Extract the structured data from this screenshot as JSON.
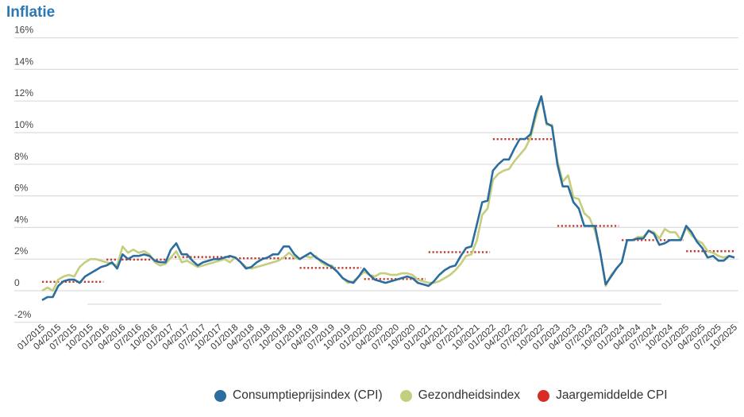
{
  "chart_data": {
    "type": "line",
    "title": "Inflatie",
    "xlabel": "",
    "ylabel": "",
    "ylim": [
      -2,
      16
    ],
    "yticks": [
      -2,
      0,
      2,
      4,
      6,
      8,
      10,
      12,
      14,
      16
    ],
    "ytick_labels": [
      "-2%",
      "0",
      "2%",
      "4%",
      "6%",
      "8%",
      "10%",
      "12%",
      "14%",
      "16%"
    ],
    "grid": true,
    "legend_position": "bottom",
    "x_start": "01/2015",
    "x_end": "10/2025",
    "xtick_labels": [
      "01/2015",
      "04/2015",
      "07/2015",
      "10/2015",
      "01/2016",
      "04/2016",
      "07/2016",
      "10/2016",
      "01/2017",
      "04/2017",
      "07/2017",
      "10/2017",
      "01/2018",
      "04/2018",
      "07/2018",
      "10/2018",
      "01/2019",
      "04/2019",
      "07/2019",
      "10/2019",
      "01/2020",
      "04/2020",
      "07/2020",
      "10/2020",
      "01/2021",
      "04/2021",
      "07/2021",
      "10/2021",
      "01/2022",
      "04/2022",
      "07/2022",
      "10/2022",
      "01/2023",
      "04/2023",
      "07/2023",
      "10/2023",
      "01/2024",
      "04/2024",
      "07/2024",
      "10/2024",
      "01/2025",
      "04/2025",
      "07/2025",
      "10/2025"
    ],
    "series": [
      {
        "name": "Consumptieprijsindex (CPI)",
        "color": "#2b6d9e",
        "values": [
          -0.6,
          -0.4,
          -0.4,
          0.3,
          0.6,
          0.7,
          0.7,
          0.5,
          0.9,
          1.1,
          1.3,
          1.5,
          1.6,
          1.8,
          1.4,
          2.3,
          2.0,
          2.2,
          2.2,
          2.3,
          2.2,
          1.9,
          1.8,
          1.8,
          2.6,
          3.0,
          2.3,
          2.3,
          1.9,
          1.6,
          1.8,
          1.9,
          2.0,
          2.0,
          2.1,
          2.2,
          2.1,
          1.8,
          1.4,
          1.5,
          1.8,
          2.0,
          2.1,
          2.3,
          2.3,
          2.8,
          2.8,
          2.3,
          2.0,
          2.2,
          2.4,
          2.1,
          1.9,
          1.7,
          1.5,
          1.2,
          0.8,
          0.6,
          0.5,
          0.9,
          1.4,
          1.0,
          0.7,
          0.6,
          0.5,
          0.6,
          0.7,
          0.8,
          0.9,
          0.8,
          0.5,
          0.4,
          0.3,
          0.6,
          1.0,
          1.3,
          1.5,
          1.6,
          2.2,
          2.7,
          2.8,
          4.2,
          5.6,
          5.7,
          7.6,
          8.0,
          8.3,
          8.3,
          9.0,
          9.6,
          9.6,
          9.9,
          11.3,
          12.3,
          10.6,
          10.4,
          8.0,
          6.6,
          6.6,
          5.6,
          5.2,
          4.1,
          4.1,
          4.1,
          2.4,
          0.4,
          0.9,
          1.4,
          1.8,
          3.2,
          3.2,
          3.3,
          3.3,
          3.8,
          3.6,
          2.9,
          3.0,
          3.2,
          3.2,
          3.2,
          4.1,
          3.7,
          3.1,
          2.7,
          2.1,
          2.2,
          1.9,
          1.9,
          2.2,
          2.1
        ]
      },
      {
        "name": "Gezondheidsindex",
        "color": "#c5cd7e",
        "values": [
          0.0,
          0.2,
          0.0,
          0.7,
          0.9,
          1.0,
          0.9,
          1.5,
          1.8,
          2.0,
          2.0,
          1.9,
          1.8,
          1.7,
          1.6,
          2.8,
          2.4,
          2.6,
          2.4,
          2.5,
          2.3,
          1.8,
          1.6,
          1.7,
          2.1,
          2.5,
          1.8,
          1.9,
          1.7,
          1.5,
          1.6,
          1.7,
          1.8,
          1.9,
          2.0,
          1.8,
          2.1,
          1.8,
          1.5,
          1.4,
          1.5,
          1.6,
          1.7,
          1.8,
          1.9,
          2.1,
          2.4,
          2.1,
          2.0,
          2.2,
          2.1,
          2.2,
          1.8,
          1.6,
          1.6,
          1.2,
          0.8,
          0.5,
          0.6,
          0.9,
          1.2,
          1.0,
          0.9,
          1.1,
          1.1,
          1.0,
          1.0,
          1.1,
          1.1,
          1.0,
          0.7,
          0.6,
          0.5,
          0.5,
          0.6,
          0.8,
          1.0,
          1.3,
          1.7,
          2.2,
          2.3,
          3.2,
          4.8,
          5.2,
          7.0,
          7.4,
          7.6,
          7.7,
          8.2,
          8.6,
          9.0,
          9.7,
          11.0,
          12.3,
          10.5,
          10.5,
          8.2,
          6.9,
          7.3,
          5.9,
          5.8,
          4.9,
          4.6,
          3.8,
          2.4,
          0.3,
          1.0,
          1.4,
          1.8,
          3.2,
          3.2,
          3.4,
          3.4,
          3.8,
          3.7,
          3.3,
          3.9,
          3.7,
          3.7,
          3.2,
          4.0,
          3.5,
          3.2,
          3.0,
          2.5,
          2.4,
          2.2,
          2.1,
          2.2,
          2.1
        ]
      },
      {
        "name": "Jaargemiddelde CPI",
        "color": "#c0392b",
        "years": [
          2015,
          2016,
          2017,
          2018,
          2019,
          2020,
          2021,
          2022,
          2023,
          2024,
          2025
        ],
        "values": [
          0.56,
          1.97,
          2.13,
          2.05,
          1.44,
          0.74,
          2.44,
          9.59,
          4.1,
          3.2,
          2.5
        ]
      }
    ]
  }
}
